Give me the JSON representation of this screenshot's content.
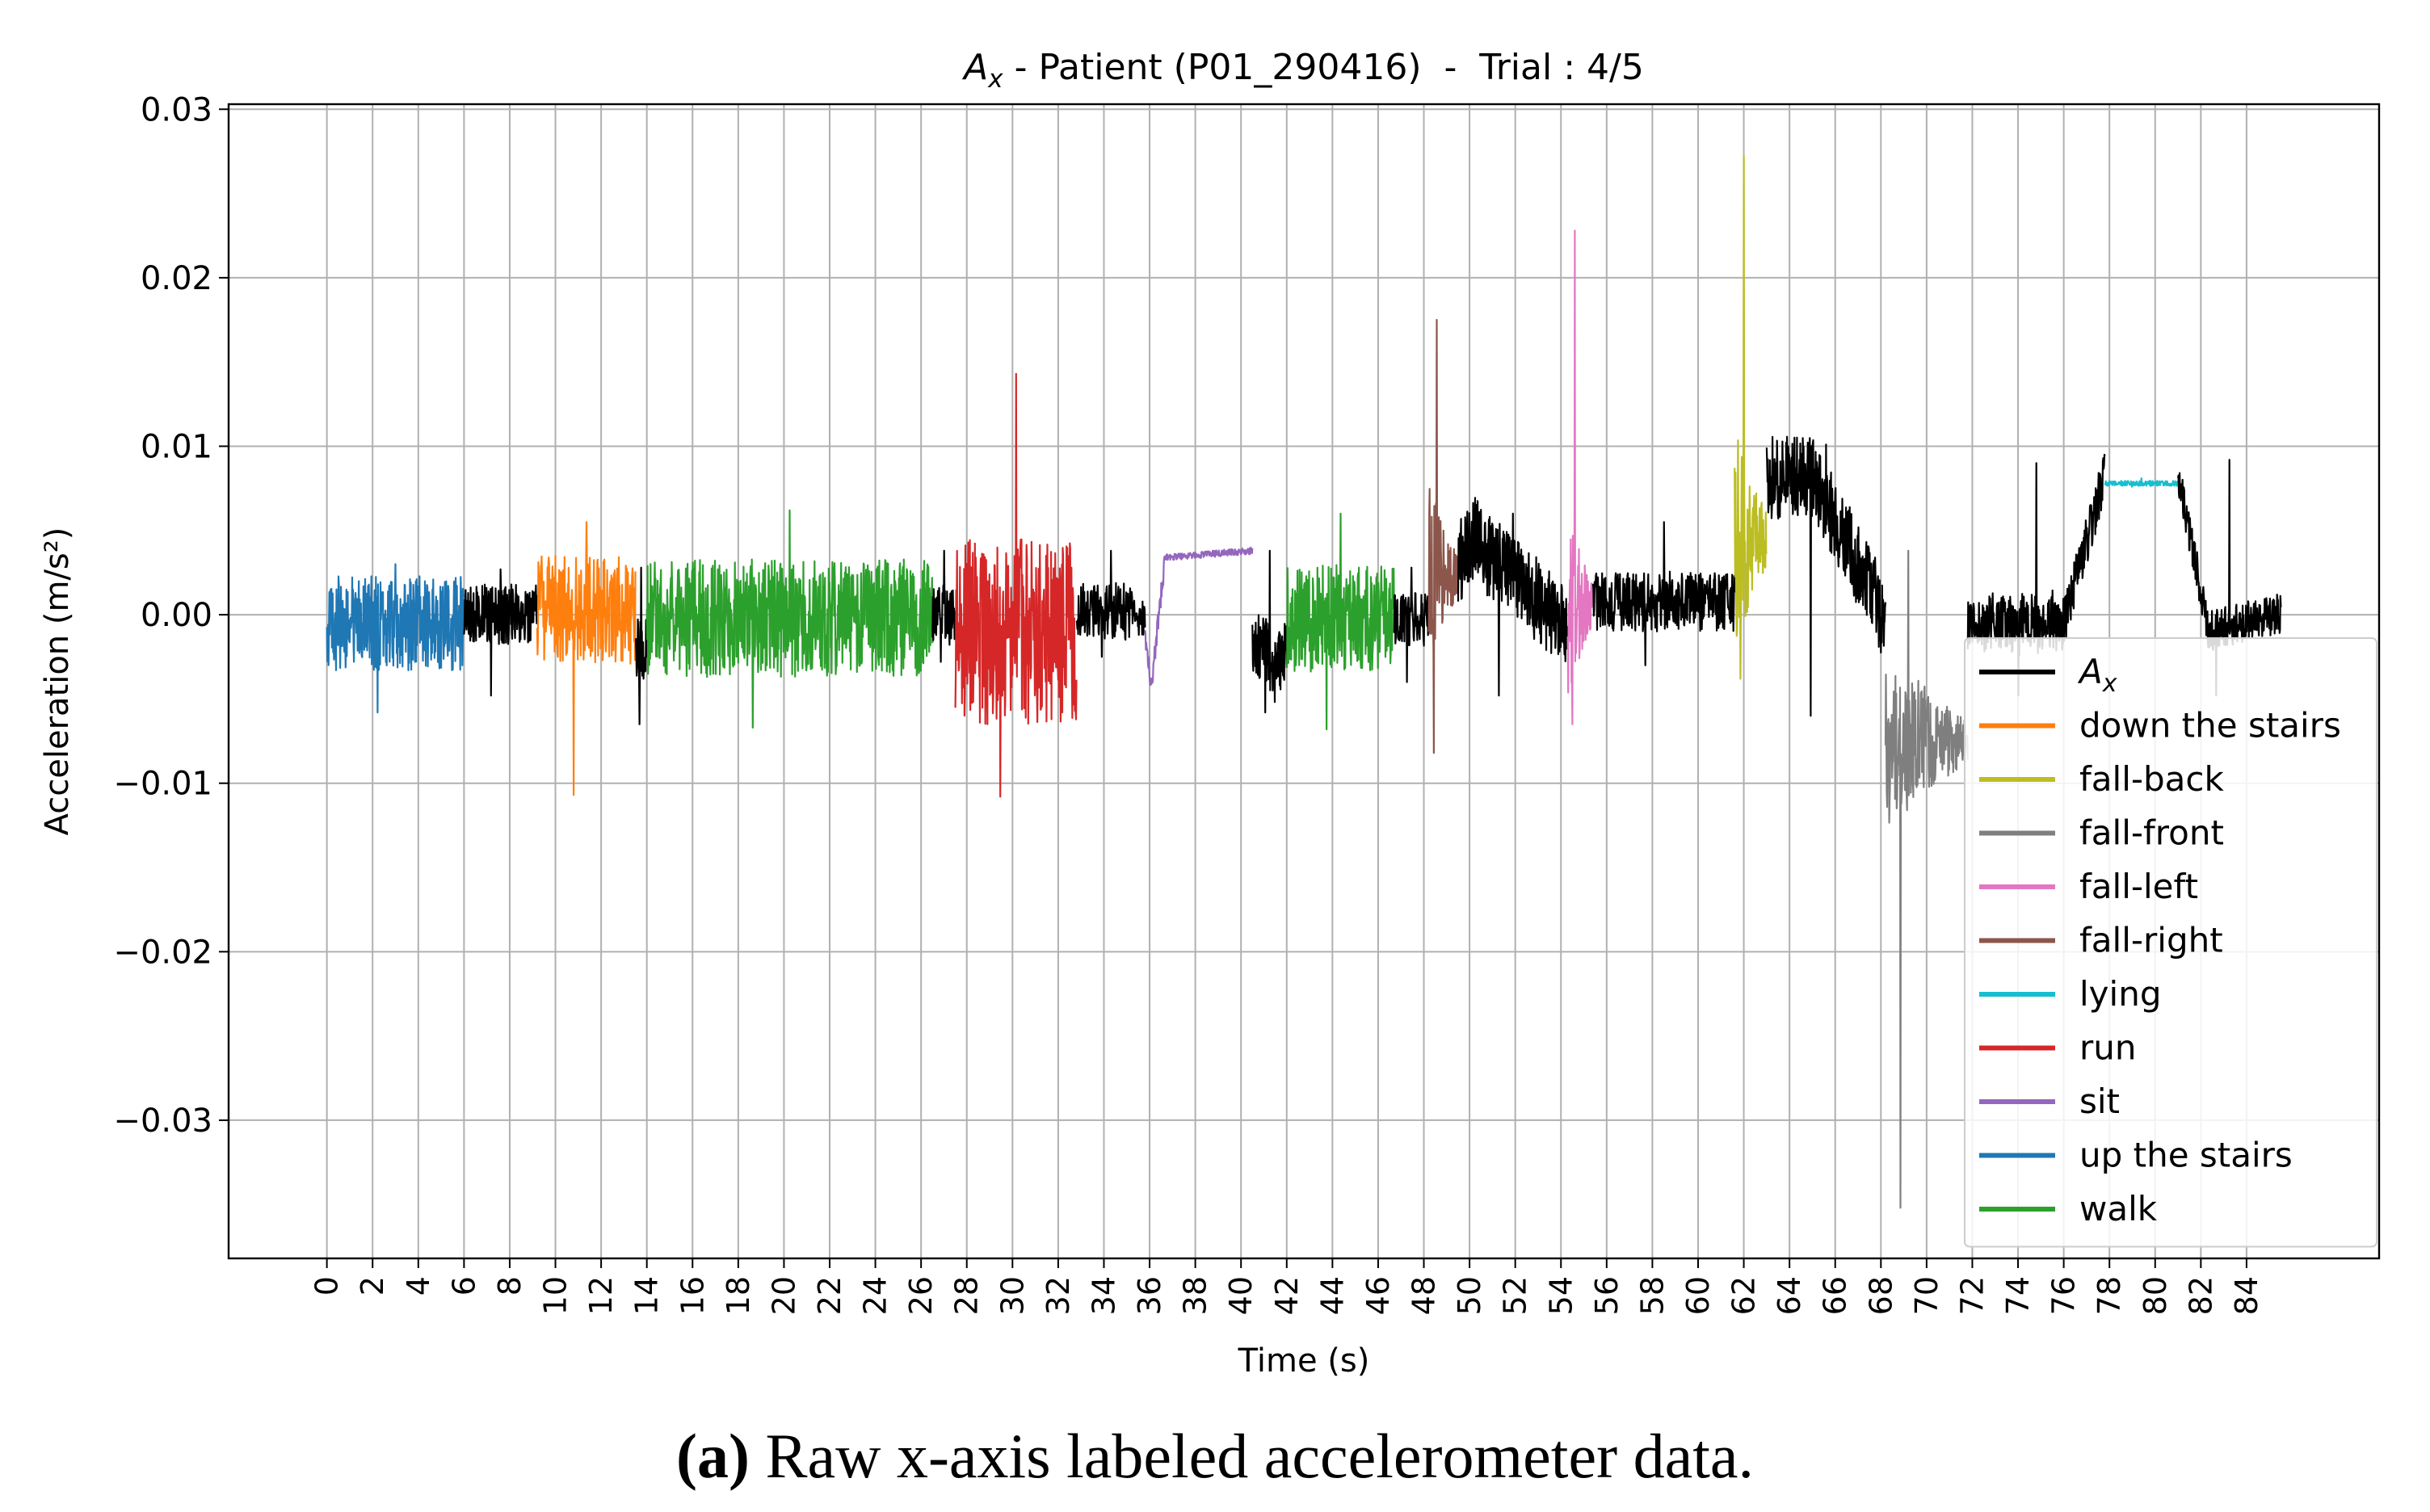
{
  "figure": {
    "caption": {
      "label": "(a)",
      "text": "Raw x-axis labeled accelerometer data."
    }
  },
  "colors": {
    "Ax": "#000000",
    "down the stairs": "#ff7f0e",
    "fall-back": "#bcbd22",
    "fall-front": "#7f7f7f",
    "fall-left": "#e377c2",
    "fall-right": "#8c564b",
    "lying": "#17becf",
    "run": "#d62728",
    "sit": "#9467bd",
    "up the stairs": "#1f77b4",
    "walk": "#2ca02c",
    "grid": "#b0b0b0",
    "frame": "#000000"
  },
  "chart_data": {
    "type": "line",
    "title": "Ax - Patient (P01_290416)  -  Trial : 4/5",
    "title_symbol": "A",
    "title_subscript": "x",
    "title_rest": " - Patient (P01_290416)  -  Trial : 4/5",
    "xlabel": "Time (s)",
    "ylabel": "Acceleration (m/s²)",
    "xlim": [
      -4.3,
      89.8
    ],
    "ylim": [
      -0.0382,
      0.0303
    ],
    "xticks": [
      0,
      2,
      4,
      6,
      8,
      10,
      12,
      14,
      16,
      18,
      20,
      22,
      24,
      26,
      28,
      30,
      32,
      34,
      36,
      38,
      40,
      42,
      44,
      46,
      48,
      50,
      52,
      54,
      56,
      58,
      60,
      62,
      64,
      66,
      68,
      70,
      72,
      74,
      76,
      78,
      80,
      82,
      84
    ],
    "yticks": [
      -0.03,
      -0.02,
      -0.01,
      0.0,
      0.01,
      0.02,
      0.03
    ],
    "ytick_labels": [
      "−0.03",
      "−0.02",
      "−0.01",
      "0.00",
      "0.01",
      "0.02",
      "0.03"
    ],
    "grid": true,
    "legend_position": "lower-right",
    "legend": [
      {
        "label": "Ax",
        "key": "Ax",
        "italic": true
      },
      {
        "label": "down the stairs",
        "key": "down the stairs"
      },
      {
        "label": "fall-back",
        "key": "fall-back"
      },
      {
        "label": "fall-front",
        "key": "fall-front"
      },
      {
        "label": "fall-left",
        "key": "fall-left"
      },
      {
        "label": "fall-right",
        "key": "fall-right"
      },
      {
        "label": "lying",
        "key": "lying"
      },
      {
        "label": "run",
        "key": "run"
      },
      {
        "label": "sit",
        "key": "sit"
      },
      {
        "label": "up the stairs",
        "key": "up the stairs"
      },
      {
        "label": "walk",
        "key": "walk"
      }
    ],
    "segments": [
      {
        "label": "up the stairs",
        "start": 0.0,
        "end": 6.0,
        "base": -0.0005,
        "amp": 0.0028,
        "peak_hi": 0.003,
        "peak_lo": -0.0058
      },
      {
        "label": "Ax",
        "start": 6.0,
        "end": 9.2,
        "base": 0.0,
        "amp": 0.0018,
        "peak_hi": 0.0027,
        "peak_lo": -0.0048
      },
      {
        "label": "down the stairs",
        "start": 9.2,
        "end": 13.5,
        "base": 0.0003,
        "amp": 0.0032,
        "peak_hi": 0.0055,
        "peak_lo": -0.0107
      },
      {
        "label": "Ax",
        "start": 13.5,
        "end": 14.0,
        "base": -0.002,
        "amp": 0.002,
        "peak_hi": 0.0028,
        "peak_lo": -0.0065
      },
      {
        "label": "walk",
        "start": 14.0,
        "end": 26.5,
        "base": -0.0002,
        "amp": 0.0035,
        "peak_hi": 0.0062,
        "peak_lo": -0.0067
      },
      {
        "label": "Ax",
        "start": 26.5,
        "end": 27.5,
        "base": 0.0,
        "amp": 0.0018,
        "peak_hi": 0.0038,
        "peak_lo": -0.0028
      },
      {
        "label": "run",
        "start": 27.5,
        "end": 32.8,
        "base": -0.001,
        "amp": 0.0055,
        "peak_hi": 0.0143,
        "peak_lo": -0.0108
      },
      {
        "label": "Ax",
        "start": 32.8,
        "end": 35.8,
        "base": 0.0002,
        "amp": 0.0017,
        "peak_hi": 0.0038,
        "peak_lo": -0.0025
      },
      {
        "label": "sit",
        "kind": "sit",
        "start": 35.8,
        "end": 40.5
      },
      {
        "label": "Ax",
        "kind": "dip",
        "start": 40.5,
        "end": 42.0,
        "base": -0.002,
        "amp": 0.002,
        "peak_hi": 0.0038,
        "peak_lo": -0.0058
      },
      {
        "label": "walk",
        "start": 42.0,
        "end": 46.7,
        "base": -0.0002,
        "amp": 0.0032,
        "peak_hi": 0.006,
        "peak_lo": -0.0068
      },
      {
        "label": "Ax",
        "start": 46.7,
        "end": 48.2,
        "base": -0.0003,
        "amp": 0.0016,
        "peak_hi": 0.0028,
        "peak_lo": -0.004
      },
      {
        "label": "fall-right",
        "kind": "fall",
        "start": 48.2,
        "end": 49.5,
        "base": 0.0025,
        "amp": 0.004,
        "peak_hi": 0.0175,
        "peak_lo": -0.0082
      },
      {
        "label": "Ax",
        "kind": "walkup",
        "start": 49.5,
        "end": 54.3,
        "base": 0.0015,
        "amp": 0.0025,
        "peak_hi": 0.006,
        "peak_lo": -0.0048
      },
      {
        "label": "fall-left",
        "kind": "fall",
        "start": 54.3,
        "end": 55.4,
        "base": 0.0005,
        "amp": 0.004,
        "peak_hi": 0.0228,
        "peak_lo": -0.0065
      },
      {
        "label": "Ax",
        "start": 55.4,
        "end": 61.6,
        "base": 0.0008,
        "amp": 0.0018,
        "peak_hi": 0.0055,
        "peak_lo": -0.003
      },
      {
        "label": "fall-back",
        "kind": "fall",
        "start": 61.6,
        "end": 63.0,
        "base": 0.0045,
        "amp": 0.005,
        "peak_hi": 0.0272,
        "peak_lo": -0.0038
      },
      {
        "label": "Ax",
        "kind": "plateau",
        "start": 63.0,
        "end": 68.2,
        "base": 0.004,
        "amp": 0.0025,
        "peak_hi": 0.0101,
        "peak_lo": -0.006
      },
      {
        "label": "fall-front",
        "kind": "fall",
        "start": 68.2,
        "end": 71.8,
        "base": -0.0075,
        "amp": 0.004,
        "peak_hi": 0.0038,
        "peak_lo": -0.0352
      },
      {
        "label": "Ax",
        "kind": "rise",
        "start": 71.8,
        "end": 77.8,
        "base": 0.0005,
        "amp": 0.0015,
        "peak_hi": 0.009,
        "peak_lo": -0.0048
      },
      {
        "label": "lying",
        "kind": "flat",
        "start": 77.8,
        "end": 81.0,
        "base": 0.0078,
        "amp": 0.0002,
        "peak_hi": 0.0081,
        "peak_lo": 0.0076
      },
      {
        "label": "Ax",
        "kind": "descend",
        "start": 81.0,
        "end": 85.5,
        "base": 0.0,
        "amp": 0.0012,
        "peak_hi": 0.0092,
        "peak_lo": -0.0048
      }
    ]
  }
}
